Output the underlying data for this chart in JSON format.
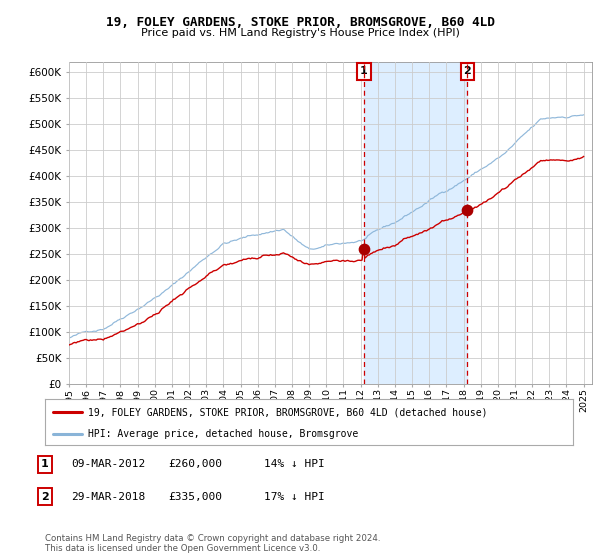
{
  "title": "19, FOLEY GARDENS, STOKE PRIOR, BROMSGROVE, B60 4LD",
  "subtitle": "Price paid vs. HM Land Registry's House Price Index (HPI)",
  "legend_line1": "19, FOLEY GARDENS, STOKE PRIOR, BROMSGROVE, B60 4LD (detached house)",
  "legend_line2": "HPI: Average price, detached house, Bromsgrove",
  "annotation1_label": "1",
  "annotation1_date": "09-MAR-2012",
  "annotation1_price": "£260,000",
  "annotation1_hpi": "14% ↓ HPI",
  "annotation2_label": "2",
  "annotation2_date": "29-MAR-2018",
  "annotation2_price": "£335,000",
  "annotation2_hpi": "17% ↓ HPI",
  "footer": "Contains HM Land Registry data © Crown copyright and database right 2024.\nThis data is licensed under the Open Government Licence v3.0.",
  "hpi_color": "#8ab4d8",
  "price_color": "#cc0000",
  "marker_color": "#aa0000",
  "vline_color": "#cc0000",
  "shade_color": "#ddeeff",
  "chart_bg": "#ffffff",
  "fig_bg": "#ffffff",
  "grid_color": "#cccccc",
  "ylim": [
    0,
    620000
  ],
  "xlim_start": 1995,
  "xlim_end": 2025.5,
  "sale1_x": 2012.19,
  "sale1_y": 260000,
  "sale2_x": 2018.23,
  "sale2_y": 335000
}
